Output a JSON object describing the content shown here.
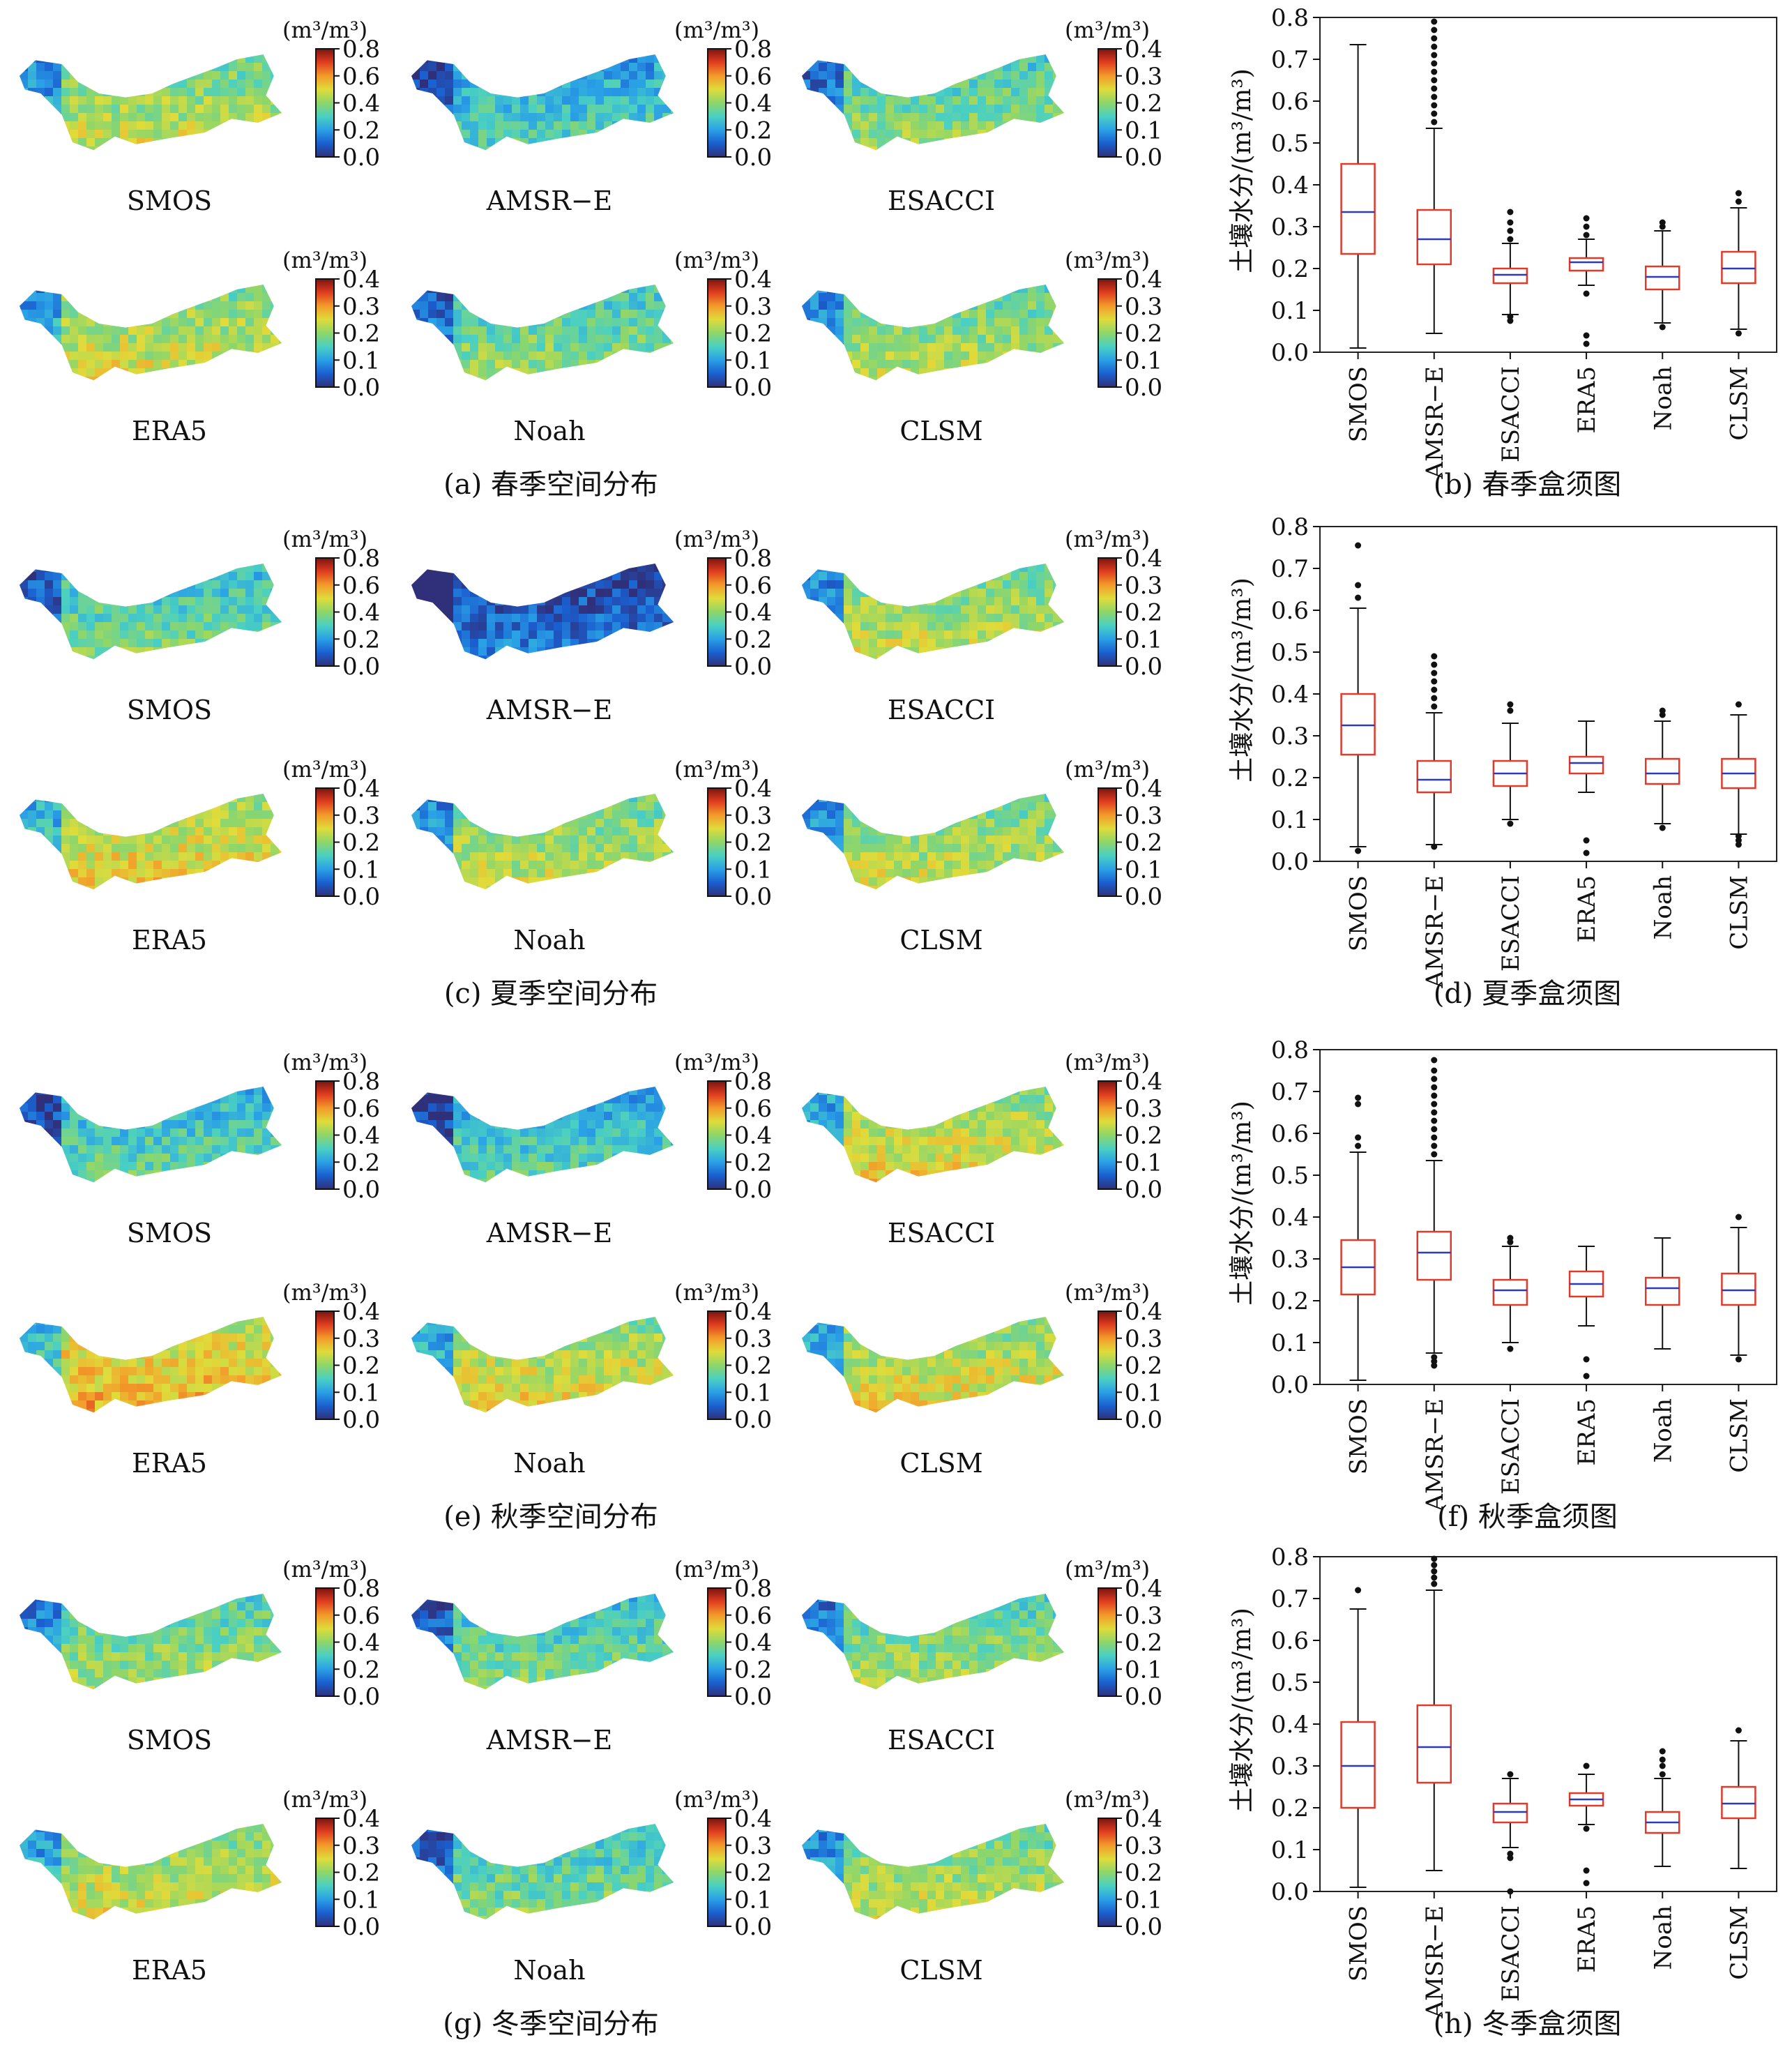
{
  "unit": "(m³/m³)",
  "ylabel": "土壤水分/(m³/m³)",
  "colormap": [
    "#30307a",
    "#1a5fd0",
    "#2aa0e6",
    "#4ad0c2",
    "#8ed66a",
    "#e0dc3a",
    "#f39a2a",
    "#e03d1f",
    "#7a1410"
  ],
  "box_colors": {
    "box": "#e03a2a",
    "median": "#2e3bb8",
    "whisker": "#111111"
  },
  "map_scale": {
    "broad": [
      0.0,
      0.8
    ],
    "narrow": [
      0.0,
      0.4
    ]
  },
  "seasons": [
    {
      "map_caption": "(a) 春季空间分布",
      "box_caption": "(b) 春季盒须图"
    },
    {
      "map_caption": "(c) 夏季空间分布",
      "box_caption": "(d) 夏季盒须图"
    },
    {
      "map_caption": "(e) 秋季空间分布",
      "box_caption": "(f) 秋季盒须图"
    },
    {
      "map_caption": "(g) 冬季空间分布",
      "box_caption": "(h) 冬季盒须图"
    }
  ],
  "chart_data": [
    {
      "type": "box",
      "title": "(b) 春季盒须图",
      "ylabel": "土壤水分/(m³/m³)",
      "ylim": [
        0,
        0.8
      ],
      "yticks": [
        0.0,
        0.1,
        0.2,
        0.3,
        0.4,
        0.5,
        0.6,
        0.7,
        0.8
      ],
      "categories": [
        "SMOS",
        "AMSR−E",
        "ESACCI",
        "ERA5",
        "Noah",
        "CLSM"
      ],
      "boxes": [
        {
          "whislo": 0.01,
          "q1": 0.235,
          "med": 0.335,
          "q3": 0.45,
          "whishi": 0.735,
          "fliers": []
        },
        {
          "whislo": 0.045,
          "q1": 0.21,
          "med": 0.27,
          "q3": 0.34,
          "whishi": 0.535,
          "fliers": [
            0.55,
            0.57,
            0.59,
            0.61,
            0.63,
            0.65,
            0.67,
            0.69,
            0.71,
            0.73,
            0.75,
            0.77,
            0.79
          ]
        },
        {
          "whislo": 0.09,
          "q1": 0.165,
          "med": 0.185,
          "q3": 0.2,
          "whishi": 0.26,
          "fliers": [
            0.075,
            0.085,
            0.27,
            0.29,
            0.31,
            0.335
          ]
        },
        {
          "whislo": 0.16,
          "q1": 0.195,
          "med": 0.215,
          "q3": 0.225,
          "whishi": 0.27,
          "fliers": [
            0.02,
            0.04,
            0.14,
            0.28,
            0.3,
            0.32
          ]
        },
        {
          "whislo": 0.07,
          "q1": 0.15,
          "med": 0.18,
          "q3": 0.205,
          "whishi": 0.29,
          "fliers": [
            0.06,
            0.3,
            0.31
          ]
        },
        {
          "whislo": 0.055,
          "q1": 0.165,
          "med": 0.2,
          "q3": 0.24,
          "whishi": 0.345,
          "fliers": [
            0.045,
            0.36,
            0.38
          ]
        }
      ]
    },
    {
      "type": "box",
      "title": "(d) 夏季盒须图",
      "ylabel": "土壤水分/(m³/m³)",
      "ylim": [
        0,
        0.8
      ],
      "yticks": [
        0.0,
        0.1,
        0.2,
        0.3,
        0.4,
        0.5,
        0.6,
        0.7,
        0.8
      ],
      "categories": [
        "SMOS",
        "AMSR−E",
        "ESACCI",
        "ERA5",
        "Noah",
        "CLSM"
      ],
      "boxes": [
        {
          "whislo": 0.035,
          "q1": 0.255,
          "med": 0.325,
          "q3": 0.4,
          "whishi": 0.605,
          "fliers": [
            0.025,
            0.63,
            0.66,
            0.755
          ]
        },
        {
          "whislo": 0.04,
          "q1": 0.165,
          "med": 0.195,
          "q3": 0.24,
          "whishi": 0.355,
          "fliers": [
            0.035,
            0.37,
            0.39,
            0.41,
            0.43,
            0.45,
            0.47,
            0.49
          ]
        },
        {
          "whislo": 0.1,
          "q1": 0.18,
          "med": 0.21,
          "q3": 0.24,
          "whishi": 0.33,
          "fliers": [
            0.09,
            0.36,
            0.375
          ]
        },
        {
          "whislo": 0.165,
          "q1": 0.21,
          "med": 0.235,
          "q3": 0.25,
          "whishi": 0.335,
          "fliers": [
            0.02,
            0.05
          ]
        },
        {
          "whislo": 0.09,
          "q1": 0.185,
          "med": 0.21,
          "q3": 0.245,
          "whishi": 0.335,
          "fliers": [
            0.08,
            0.35,
            0.36
          ]
        },
        {
          "whislo": 0.065,
          "q1": 0.175,
          "med": 0.21,
          "q3": 0.245,
          "whishi": 0.35,
          "fliers": [
            0.04,
            0.05,
            0.06,
            0.375
          ]
        }
      ]
    },
    {
      "type": "box",
      "title": "(f) 秋季盒须图",
      "ylabel": "土壤水分/(m³/m³)",
      "ylim": [
        0,
        0.8
      ],
      "yticks": [
        0.0,
        0.1,
        0.2,
        0.3,
        0.4,
        0.5,
        0.6,
        0.7,
        0.8
      ],
      "categories": [
        "SMOS",
        "AMSR−E",
        "ESACCI",
        "ERA5",
        "Noah",
        "CLSM"
      ],
      "boxes": [
        {
          "whislo": 0.01,
          "q1": 0.215,
          "med": 0.28,
          "q3": 0.345,
          "whishi": 0.555,
          "fliers": [
            0.57,
            0.59,
            0.67,
            0.685
          ]
        },
        {
          "whislo": 0.075,
          "q1": 0.25,
          "med": 0.315,
          "q3": 0.365,
          "whishi": 0.535,
          "fliers": [
            0.045,
            0.055,
            0.065,
            0.55,
            0.57,
            0.59,
            0.61,
            0.63,
            0.65,
            0.67,
            0.69,
            0.71,
            0.73,
            0.75,
            0.775
          ]
        },
        {
          "whislo": 0.1,
          "q1": 0.19,
          "med": 0.225,
          "q3": 0.25,
          "whishi": 0.33,
          "fliers": [
            0.085,
            0.34,
            0.35
          ]
        },
        {
          "whislo": 0.14,
          "q1": 0.21,
          "med": 0.24,
          "q3": 0.27,
          "whishi": 0.33,
          "fliers": [
            0.02,
            0.06
          ]
        },
        {
          "whislo": 0.085,
          "q1": 0.19,
          "med": 0.23,
          "q3": 0.255,
          "whishi": 0.35,
          "fliers": []
        },
        {
          "whislo": 0.07,
          "q1": 0.19,
          "med": 0.225,
          "q3": 0.265,
          "whishi": 0.375,
          "fliers": [
            0.06,
            0.4
          ]
        }
      ]
    },
    {
      "type": "box",
      "title": "(h) 冬季盒须图",
      "ylabel": "土壤水分/(m³/m³)",
      "ylim": [
        0,
        0.8
      ],
      "yticks": [
        0.0,
        0.1,
        0.2,
        0.3,
        0.4,
        0.5,
        0.6,
        0.7,
        0.8
      ],
      "categories": [
        "SMOS",
        "AMSR−E",
        "ESACCI",
        "ERA5",
        "Noah",
        "CLSM"
      ],
      "boxes": [
        {
          "whislo": 0.01,
          "q1": 0.2,
          "med": 0.3,
          "q3": 0.405,
          "whishi": 0.675,
          "fliers": [
            0.72
          ]
        },
        {
          "whislo": 0.05,
          "q1": 0.26,
          "med": 0.345,
          "q3": 0.445,
          "whishi": 0.72,
          "fliers": [
            0.735,
            0.75,
            0.765,
            0.78,
            0.795
          ]
        },
        {
          "whislo": 0.105,
          "q1": 0.165,
          "med": 0.19,
          "q3": 0.21,
          "whishi": 0.27,
          "fliers": [
            0.0,
            0.08,
            0.09,
            0.28
          ]
        },
        {
          "whislo": 0.16,
          "q1": 0.205,
          "med": 0.22,
          "q3": 0.235,
          "whishi": 0.28,
          "fliers": [
            0.02,
            0.05,
            0.15,
            0.3
          ]
        },
        {
          "whislo": 0.06,
          "q1": 0.14,
          "med": 0.165,
          "q3": 0.19,
          "whishi": 0.27,
          "fliers": [
            0.28,
            0.3,
            0.315,
            0.335
          ]
        },
        {
          "whislo": 0.055,
          "q1": 0.175,
          "med": 0.21,
          "q3": 0.25,
          "whishi": 0.36,
          "fliers": [
            0.385
          ]
        }
      ]
    }
  ],
  "map_panels": [
    {
      "season": "春季",
      "maps": [
        {
          "label": "SMOS",
          "scale": "broad",
          "level": 0.42
        },
        {
          "label": "AMSR−E",
          "scale": "broad",
          "level": 0.27
        },
        {
          "label": "ESACCI",
          "scale": "narrow",
          "level": 0.18
        },
        {
          "label": "ERA5",
          "scale": "narrow",
          "level": 0.22
        },
        {
          "label": "Noah",
          "scale": "narrow",
          "level": 0.18
        },
        {
          "label": "CLSM",
          "scale": "narrow",
          "level": 0.2
        }
      ]
    },
    {
      "season": "夏季",
      "maps": [
        {
          "label": "SMOS",
          "scale": "broad",
          "level": 0.33
        },
        {
          "label": "AMSR−E",
          "scale": "broad",
          "level": 0.1
        },
        {
          "label": "ESACCI",
          "scale": "narrow",
          "level": 0.21
        },
        {
          "label": "ERA5",
          "scale": "narrow",
          "level": 0.24
        },
        {
          "label": "Noah",
          "scale": "narrow",
          "level": 0.21
        },
        {
          "label": "CLSM",
          "scale": "narrow",
          "level": 0.21
        }
      ]
    },
    {
      "season": "秋季",
      "maps": [
        {
          "label": "SMOS",
          "scale": "broad",
          "level": 0.3
        },
        {
          "label": "AMSR−E",
          "scale": "broad",
          "level": 0.28
        },
        {
          "label": "ESACCI",
          "scale": "narrow",
          "level": 0.23
        },
        {
          "label": "ERA5",
          "scale": "narrow",
          "level": 0.26
        },
        {
          "label": "Noah",
          "scale": "narrow",
          "level": 0.23
        },
        {
          "label": "CLSM",
          "scale": "narrow",
          "level": 0.23
        }
      ]
    },
    {
      "season": "冬季",
      "maps": [
        {
          "label": "SMOS",
          "scale": "broad",
          "level": 0.38
        },
        {
          "label": "AMSR−E",
          "scale": "broad",
          "level": 0.33
        },
        {
          "label": "ESACCI",
          "scale": "narrow",
          "level": 0.19
        },
        {
          "label": "ERA5",
          "scale": "narrow",
          "level": 0.22
        },
        {
          "label": "Noah",
          "scale": "narrow",
          "level": 0.17
        },
        {
          "label": "CLSM",
          "scale": "narrow",
          "level": 0.21
        }
      ]
    }
  ]
}
